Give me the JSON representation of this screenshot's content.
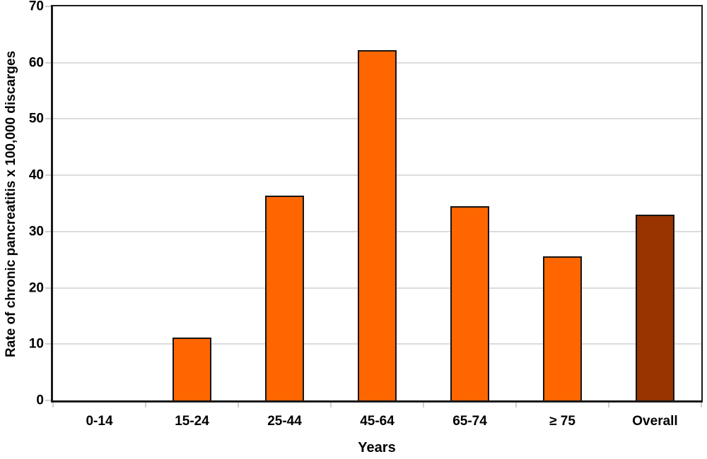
{
  "chart_data": {
    "type": "bar",
    "title": "",
    "xlabel": "Years",
    "ylabel": "Rate of chronic pancreatitis x 100,000 discarges",
    "categories": [
      "0-14",
      "15-24",
      "25-44",
      "45-64",
      "65-74",
      "≥ 75",
      "Overall"
    ],
    "values": [
      0,
      11.2,
      36.4,
      62.2,
      34.5,
      25.6,
      33.0
    ],
    "bar_colors": [
      "#FF6600",
      "#FF6600",
      "#FF6600",
      "#FF6600",
      "#FF6600",
      "#FF6600",
      "#993300"
    ],
    "yticks": [
      0,
      10,
      20,
      30,
      40,
      50,
      60,
      70
    ],
    "ylim": [
      0,
      70
    ],
    "grid": "horizontal-major",
    "legend": "none",
    "colors": {
      "bar_orange": "#FF6600",
      "bar_overall_brown": "#993300",
      "bar_border": "#151515",
      "axis_frame": "#1A1A1A",
      "gridline": "#DCDCDC",
      "tick_mark": "#CFCFCF",
      "background": "#FFFFFF",
      "text": "#000000"
    }
  }
}
